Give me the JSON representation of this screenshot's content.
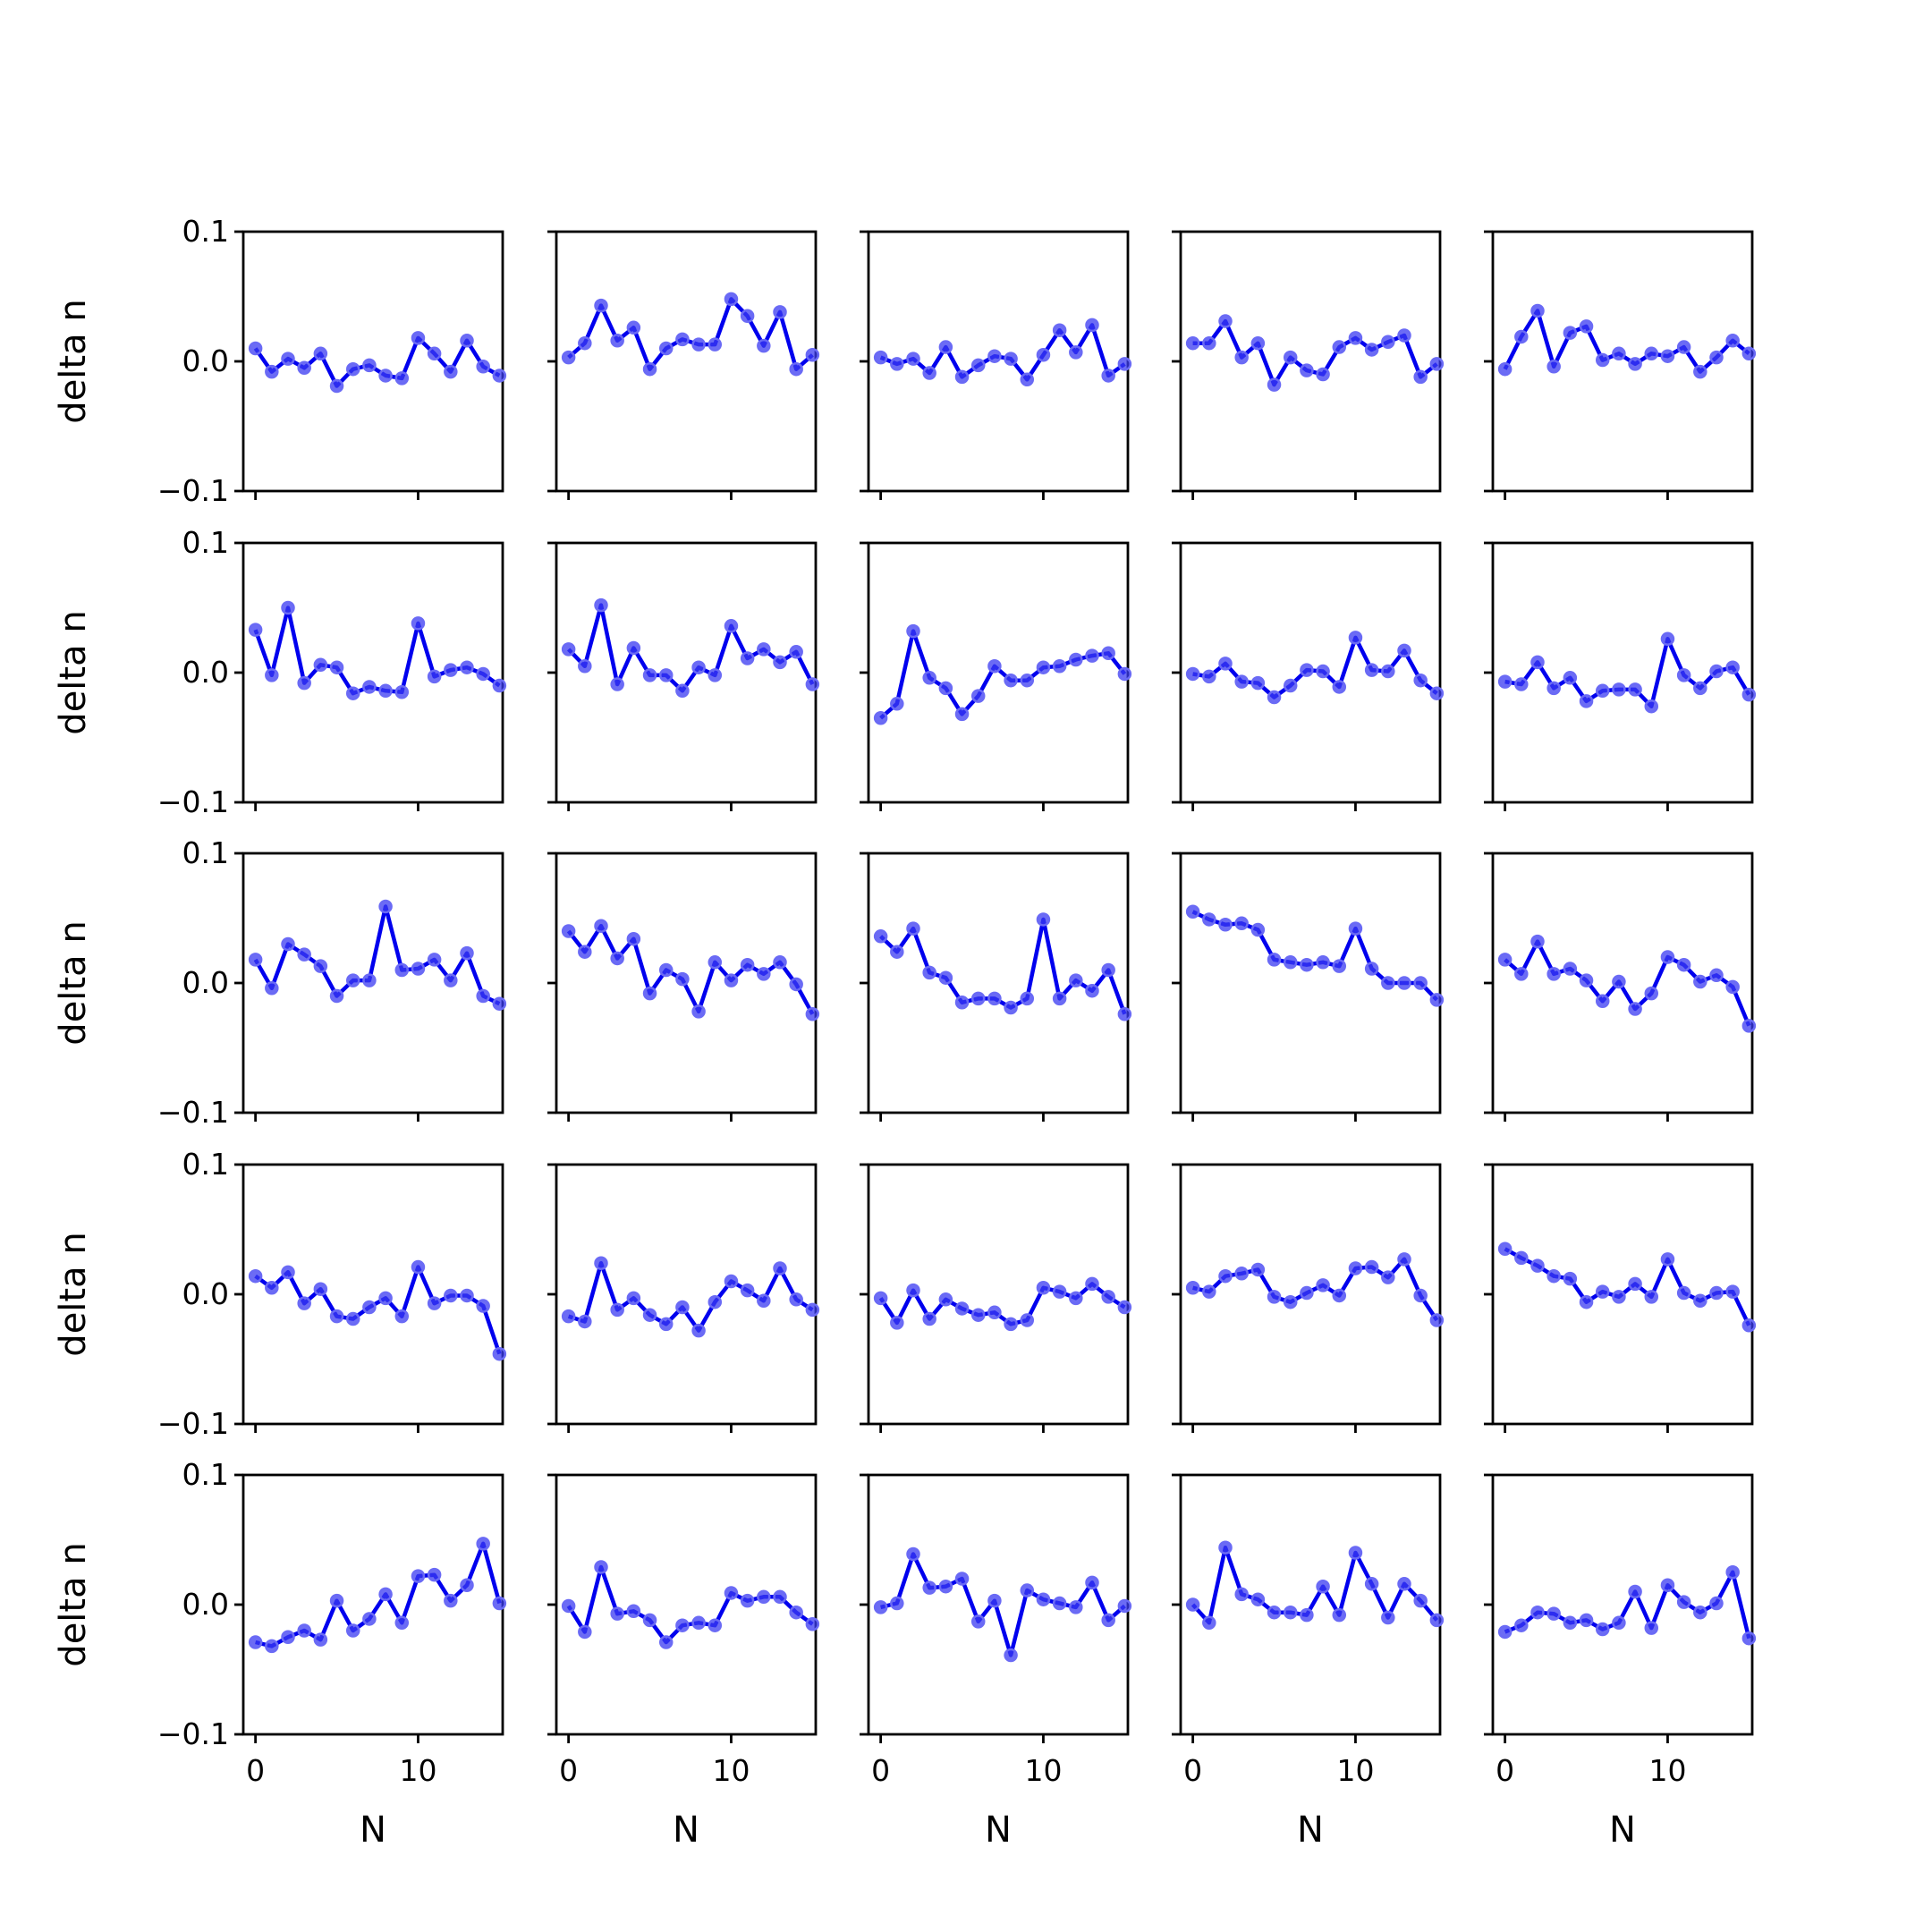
{
  "chart_data": {
    "type": "line",
    "layout": {
      "rows": 5,
      "cols": 5,
      "sharex": true,
      "sharey": true
    },
    "xlabel": "N",
    "ylabel": "delta n",
    "xlim": [
      -0.75,
      15.2
    ],
    "ylim": [
      -0.1,
      0.1
    ],
    "xticks": [
      0,
      10
    ],
    "xtick_labels": [
      "0",
      "10"
    ],
    "yticks": [
      -0.1,
      0.0,
      0.1
    ],
    "ytick_labels": [
      "−0.1",
      "0.0",
      "0.1"
    ],
    "grid": false,
    "line_color": "#0000ee",
    "marker_color": "#3b3bf0",
    "x": [
      0,
      1,
      2,
      3,
      4,
      5,
      6,
      7,
      8,
      9,
      10,
      11,
      12,
      13,
      14,
      15
    ],
    "panels": [
      {
        "row": 0,
        "col": 0,
        "y": [
          0.01,
          -0.008,
          0.002,
          -0.005,
          0.006,
          -0.019,
          -0.006,
          -0.003,
          -0.011,
          -0.013,
          0.018,
          0.006,
          -0.008,
          0.016,
          -0.004,
          -0.011
        ]
      },
      {
        "row": 0,
        "col": 1,
        "y": [
          0.003,
          0.014,
          0.043,
          0.016,
          0.026,
          -0.006,
          0.01,
          0.017,
          0.013,
          0.013,
          0.048,
          0.035,
          0.012,
          0.038,
          -0.006,
          0.005
        ]
      },
      {
        "row": 0,
        "col": 2,
        "y": [
          0.003,
          -0.002,
          0.002,
          -0.009,
          0.011,
          -0.012,
          -0.003,
          0.004,
          0.002,
          -0.014,
          0.005,
          0.024,
          0.007,
          0.028,
          -0.011,
          -0.002
        ]
      },
      {
        "row": 0,
        "col": 3,
        "y": [
          0.014,
          0.014,
          0.031,
          0.003,
          0.014,
          -0.018,
          0.003,
          -0.007,
          -0.01,
          0.011,
          0.018,
          0.009,
          0.015,
          0.02,
          -0.012,
          -0.002
        ]
      },
      {
        "row": 0,
        "col": 4,
        "y": [
          -0.006,
          0.019,
          0.039,
          -0.004,
          0.022,
          0.027,
          0.001,
          0.006,
          -0.002,
          0.006,
          0.004,
          0.011,
          -0.008,
          0.003,
          0.016,
          0.006
        ]
      },
      {
        "row": 1,
        "col": 0,
        "y": [
          0.033,
          -0.002,
          0.05,
          -0.008,
          0.006,
          0.004,
          -0.016,
          -0.011,
          -0.014,
          -0.015,
          0.038,
          -0.003,
          0.002,
          0.004,
          -0.001,
          -0.01
        ]
      },
      {
        "row": 1,
        "col": 1,
        "y": [
          0.018,
          0.005,
          0.052,
          -0.009,
          0.019,
          -0.002,
          -0.002,
          -0.014,
          0.004,
          -0.002,
          0.036,
          0.011,
          0.018,
          0.008,
          0.016,
          -0.009
        ]
      },
      {
        "row": 1,
        "col": 2,
        "y": [
          -0.035,
          -0.024,
          0.032,
          -0.004,
          -0.012,
          -0.032,
          -0.018,
          0.005,
          -0.006,
          -0.006,
          0.004,
          0.005,
          0.01,
          0.013,
          0.015,
          -0.001
        ]
      },
      {
        "row": 1,
        "col": 3,
        "y": [
          -0.001,
          -0.003,
          0.007,
          -0.007,
          -0.008,
          -0.019,
          -0.01,
          0.002,
          0.001,
          -0.011,
          0.027,
          0.002,
          0.001,
          0.017,
          -0.006,
          -0.016
        ]
      },
      {
        "row": 1,
        "col": 4,
        "y": [
          -0.007,
          -0.009,
          0.008,
          -0.012,
          -0.004,
          -0.022,
          -0.014,
          -0.013,
          -0.013,
          -0.026,
          0.026,
          -0.002,
          -0.012,
          0.001,
          0.004,
          -0.017
        ]
      },
      {
        "row": 2,
        "col": 0,
        "y": [
          0.018,
          -0.004,
          0.03,
          0.022,
          0.013,
          -0.01,
          0.002,
          0.002,
          0.059,
          0.01,
          0.011,
          0.018,
          0.002,
          0.023,
          -0.01,
          -0.016
        ]
      },
      {
        "row": 2,
        "col": 1,
        "y": [
          0.04,
          0.024,
          0.044,
          0.019,
          0.034,
          -0.008,
          0.01,
          0.003,
          -0.022,
          0.016,
          0.002,
          0.014,
          0.007,
          0.016,
          -0.001,
          -0.024
        ]
      },
      {
        "row": 2,
        "col": 2,
        "y": [
          0.036,
          0.024,
          0.042,
          0.008,
          0.004,
          -0.015,
          -0.012,
          -0.012,
          -0.019,
          -0.012,
          0.049,
          -0.012,
          0.002,
          -0.006,
          0.01,
          -0.024
        ]
      },
      {
        "row": 2,
        "col": 3,
        "y": [
          0.055,
          0.049,
          0.045,
          0.046,
          0.041,
          0.018,
          0.016,
          0.014,
          0.016,
          0.013,
          0.042,
          0.011,
          0.0,
          0.0,
          0.0,
          -0.013
        ]
      },
      {
        "row": 2,
        "col": 4,
        "y": [
          0.018,
          0.007,
          0.032,
          0.007,
          0.011,
          0.002,
          -0.014,
          0.001,
          -0.02,
          -0.008,
          0.02,
          0.014,
          0.001,
          0.006,
          -0.003,
          -0.033
        ]
      },
      {
        "row": 3,
        "col": 0,
        "y": [
          0.014,
          0.005,
          0.017,
          -0.007,
          0.004,
          -0.017,
          -0.019,
          -0.01,
          -0.003,
          -0.017,
          0.021,
          -0.007,
          -0.001,
          -0.001,
          -0.009,
          -0.046
        ]
      },
      {
        "row": 3,
        "col": 1,
        "y": [
          -0.017,
          -0.021,
          0.024,
          -0.012,
          -0.003,
          -0.016,
          -0.023,
          -0.01,
          -0.028,
          -0.006,
          0.01,
          0.003,
          -0.005,
          0.02,
          -0.004,
          -0.012
        ]
      },
      {
        "row": 3,
        "col": 2,
        "y": [
          -0.003,
          -0.022,
          0.003,
          -0.019,
          -0.004,
          -0.011,
          -0.016,
          -0.014,
          -0.023,
          -0.02,
          0.005,
          0.002,
          -0.003,
          0.008,
          -0.002,
          -0.01
        ]
      },
      {
        "row": 3,
        "col": 3,
        "y": [
          0.005,
          0.002,
          0.014,
          0.016,
          0.019,
          -0.002,
          -0.006,
          0.001,
          0.007,
          -0.001,
          0.02,
          0.021,
          0.013,
          0.027,
          -0.001,
          -0.02
        ]
      },
      {
        "row": 3,
        "col": 4,
        "y": [
          0.035,
          0.028,
          0.022,
          0.014,
          0.012,
          -0.006,
          0.002,
          -0.002,
          0.008,
          -0.002,
          0.027,
          0.001,
          -0.005,
          0.001,
          0.002,
          -0.024
        ]
      },
      {
        "row": 4,
        "col": 0,
        "y": [
          -0.029,
          -0.032,
          -0.025,
          -0.02,
          -0.027,
          0.003,
          -0.02,
          -0.011,
          0.008,
          -0.014,
          0.022,
          0.023,
          0.003,
          0.015,
          0.047,
          0.001
        ]
      },
      {
        "row": 4,
        "col": 1,
        "y": [
          -0.001,
          -0.021,
          0.029,
          -0.007,
          -0.005,
          -0.012,
          -0.029,
          -0.016,
          -0.014,
          -0.016,
          0.009,
          0.003,
          0.006,
          0.006,
          -0.006,
          -0.015
        ]
      },
      {
        "row": 4,
        "col": 2,
        "y": [
          -0.002,
          0.001,
          0.039,
          0.013,
          0.014,
          0.02,
          -0.013,
          0.003,
          -0.039,
          0.011,
          0.004,
          0.001,
          -0.002,
          0.017,
          -0.012,
          -0.001
        ]
      },
      {
        "row": 4,
        "col": 3,
        "y": [
          0.0,
          -0.014,
          0.044,
          0.008,
          0.004,
          -0.006,
          -0.006,
          -0.008,
          0.014,
          -0.008,
          0.04,
          0.016,
          -0.01,
          0.016,
          0.003,
          -0.012
        ]
      },
      {
        "row": 4,
        "col": 4,
        "y": [
          -0.021,
          -0.016,
          -0.006,
          -0.007,
          -0.014,
          -0.012,
          -0.019,
          -0.014,
          0.01,
          -0.018,
          0.015,
          0.002,
          -0.006,
          0.001,
          0.025,
          -0.026
        ]
      }
    ]
  }
}
